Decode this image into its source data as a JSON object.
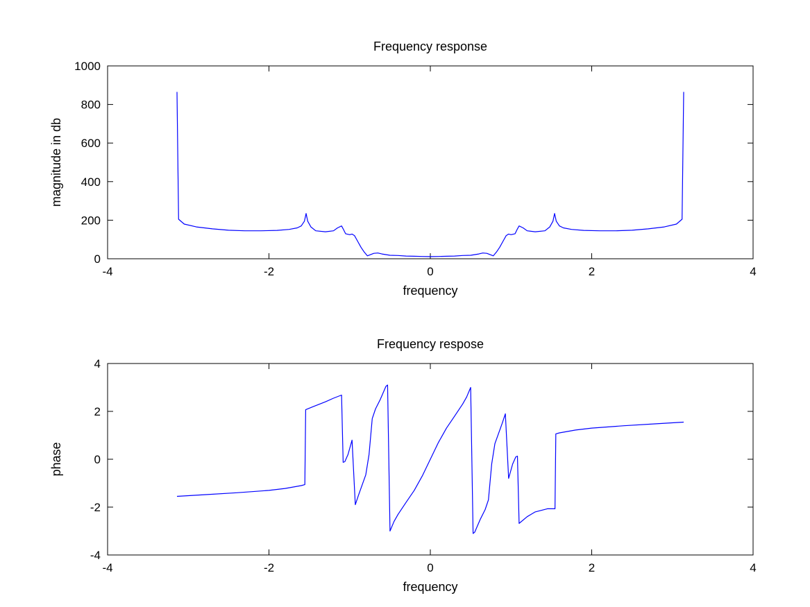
{
  "chart_data": [
    {
      "type": "line",
      "title": "Frequency response",
      "xlabel": "frequency",
      "ylabel": "magnitude in db",
      "xlim": [
        -4,
        4
      ],
      "ylim": [
        0,
        1000
      ],
      "xticks": [
        -4,
        -2,
        0,
        2,
        4
      ],
      "yticks": [
        0,
        200,
        400,
        600,
        800,
        1000
      ],
      "grid": false,
      "line_color": "#0000ff",
      "series": [
        {
          "x": [
            -3.14,
            -3.12,
            -3.05,
            -2.9,
            -2.7,
            -2.5,
            -2.3,
            -2.1,
            -1.9,
            -1.75,
            -1.65,
            -1.6,
            -1.56,
            -1.54,
            -1.52,
            -1.48,
            -1.42,
            -1.3,
            -1.2,
            -1.15,
            -1.1,
            -1.08,
            -1.05,
            -1.0,
            -0.97,
            -0.94,
            -0.9,
            -0.86,
            -0.82,
            -0.78,
            -0.75,
            -0.7,
            -0.65,
            -0.6,
            -0.5,
            -0.4,
            -0.3,
            -0.2,
            -0.1,
            0,
            0.1,
            0.2,
            0.3,
            0.4,
            0.5,
            0.6,
            0.65,
            0.7,
            0.75,
            0.78,
            0.82,
            0.86,
            0.9,
            0.94,
            0.97,
            1.0,
            1.05,
            1.08,
            1.1,
            1.15,
            1.2,
            1.3,
            1.42,
            1.48,
            1.52,
            1.54,
            1.56,
            1.6,
            1.65,
            1.75,
            1.9,
            2.1,
            2.3,
            2.5,
            2.7,
            2.9,
            3.05,
            3.12,
            3.14
          ],
          "y": [
            865,
            205,
            180,
            165,
            155,
            148,
            145,
            145,
            147,
            152,
            160,
            170,
            195,
            235,
            195,
            165,
            145,
            140,
            145,
            160,
            170,
            155,
            130,
            125,
            128,
            120,
            90,
            60,
            35,
            15,
            20,
            28,
            30,
            25,
            18,
            17,
            14,
            13,
            12,
            11,
            12,
            13,
            14,
            17,
            18,
            25,
            30,
            28,
            20,
            15,
            35,
            60,
            90,
            120,
            128,
            125,
            130,
            155,
            170,
            160,
            145,
            140,
            145,
            165,
            195,
            235,
            195,
            170,
            160,
            152,
            147,
            145,
            145,
            148,
            155,
            165,
            180,
            205,
            865
          ]
        }
      ]
    },
    {
      "type": "line",
      "title": "Frequency respose",
      "xlabel": "frequency",
      "ylabel": "phase",
      "xlim": [
        -4,
        4
      ],
      "ylim": [
        -4,
        4
      ],
      "xticks": [
        -4,
        -2,
        0,
        2,
        4
      ],
      "yticks": [
        -4,
        -2,
        0,
        2,
        4
      ],
      "grid": false,
      "line_color": "#0000ff",
      "series": [
        {
          "x": [
            -3.14,
            -2.8,
            -2.4,
            -2.0,
            -1.8,
            -1.6,
            -1.555,
            -1.545,
            -1.45,
            -1.3,
            -1.2,
            -1.1,
            -1.08,
            -1.06,
            -1.02,
            -0.97,
            -0.93,
            -0.89,
            -0.8,
            -0.76,
            -0.72,
            -0.68,
            -0.62,
            -0.55,
            -0.53,
            -0.5,
            -0.45,
            -0.4,
            -0.3,
            -0.2,
            -0.1,
            0,
            0.1,
            0.2,
            0.3,
            0.4,
            0.45,
            0.5,
            0.53,
            0.55,
            0.62,
            0.68,
            0.72,
            0.76,
            0.8,
            0.89,
            0.93,
            0.97,
            1.02,
            1.06,
            1.08,
            1.1,
            1.2,
            1.3,
            1.45,
            1.545,
            1.555,
            1.6,
            1.8,
            2.0,
            2.4,
            2.8,
            3.14
          ],
          "y": [
            -1.55,
            -1.48,
            -1.4,
            -1.3,
            -1.22,
            -1.1,
            -1.06,
            2.07,
            2.2,
            2.4,
            2.55,
            2.68,
            -0.13,
            -0.1,
            0.2,
            0.8,
            -1.9,
            -1.5,
            -0.65,
            0.2,
            1.7,
            2.1,
            2.5,
            3.05,
            3.1,
            -3.0,
            -2.6,
            -2.3,
            -1.8,
            -1.3,
            -0.7,
            0.0,
            0.7,
            1.3,
            1.8,
            2.3,
            2.6,
            3.0,
            -3.1,
            -3.05,
            -2.5,
            -2.1,
            -1.7,
            -0.2,
            0.65,
            1.5,
            1.9,
            -0.8,
            -0.2,
            0.1,
            0.13,
            -2.68,
            -2.4,
            -2.2,
            -2.07,
            -2.07,
            1.06,
            1.1,
            1.22,
            1.3,
            1.4,
            1.48,
            1.55
          ]
        }
      ]
    }
  ]
}
